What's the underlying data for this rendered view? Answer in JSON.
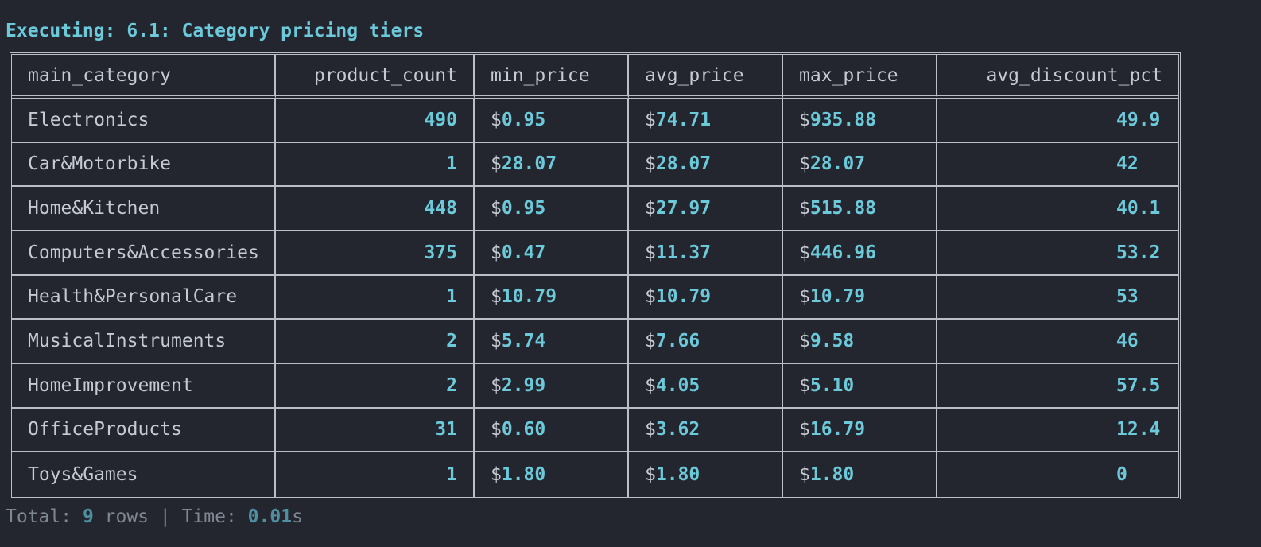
{
  "header": {
    "title": "Executing: 6.1: Category pricing tiers"
  },
  "table": {
    "columns": [
      "main_category",
      "product_count",
      "min_price",
      "avg_price",
      "max_price",
      "avg_discount_pct"
    ],
    "rows": [
      {
        "main_category": "Electronics",
        "product_count": "490",
        "min_price": "0.95",
        "avg_price": "74.71",
        "max_price": "935.88",
        "avg_discount_pct": "49.9"
      },
      {
        "main_category": "Car&Motorbike",
        "product_count": "1",
        "min_price": "28.07",
        "avg_price": "28.07",
        "max_price": "28.07",
        "avg_discount_pct": "42"
      },
      {
        "main_category": "Home&Kitchen",
        "product_count": "448",
        "min_price": "0.95",
        "avg_price": "27.97",
        "max_price": "515.88",
        "avg_discount_pct": "40.1"
      },
      {
        "main_category": "Computers&Accessories",
        "product_count": "375",
        "min_price": "0.47",
        "avg_price": "11.37",
        "max_price": "446.96",
        "avg_discount_pct": "53.2"
      },
      {
        "main_category": "Health&PersonalCare",
        "product_count": "1",
        "min_price": "10.79",
        "avg_price": "10.79",
        "max_price": "10.79",
        "avg_discount_pct": "53"
      },
      {
        "main_category": "MusicalInstruments",
        "product_count": "2",
        "min_price": "5.74",
        "avg_price": "7.66",
        "max_price": "9.58",
        "avg_discount_pct": "46"
      },
      {
        "main_category": "HomeImprovement",
        "product_count": "2",
        "min_price": "2.99",
        "avg_price": "4.05",
        "max_price": "5.10",
        "avg_discount_pct": "57.5"
      },
      {
        "main_category": "OfficeProducts",
        "product_count": "31",
        "min_price": "0.60",
        "avg_price": "3.62",
        "max_price": "16.79",
        "avg_discount_pct": "12.4"
      },
      {
        "main_category": "Toys&Games",
        "product_count": "1",
        "min_price": "1.80",
        "avg_price": "1.80",
        "max_price": "1.80",
        "avg_discount_pct": "0"
      }
    ],
    "currency_symbol": "$"
  },
  "footer": {
    "total_label": "Total: ",
    "row_count": "9",
    "rows_label": " rows | Time: ",
    "time_value": "0.01",
    "time_unit": "s"
  },
  "colors": {
    "background": "#23262e",
    "accent": "#6cc9da",
    "text": "#c5cad3",
    "border": "#b9bec7",
    "muted": "#7f8791"
  }
}
